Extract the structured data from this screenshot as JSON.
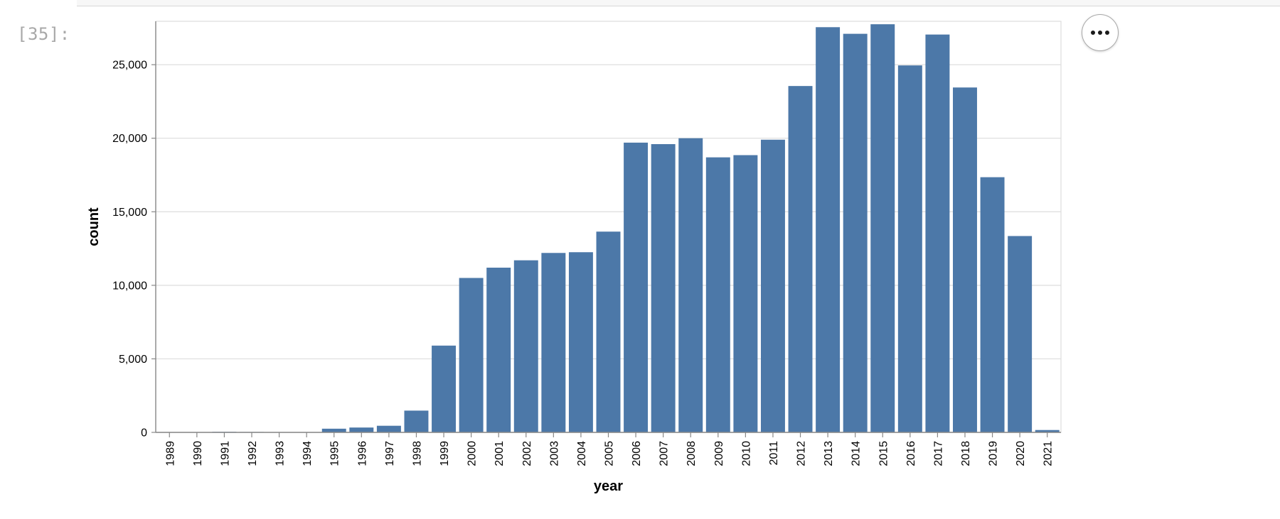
{
  "cell": {
    "prompt": "[35]:"
  },
  "actions_button": {
    "icon": "more-horizontal-icon"
  },
  "colors": {
    "bar": "#4c78a8",
    "grid": "#dddddd",
    "axis": "#888888"
  },
  "chart_data": {
    "type": "bar",
    "xlabel": "year",
    "ylabel": "count",
    "categories": [
      "1989",
      "1990",
      "1991",
      "1992",
      "1993",
      "1994",
      "1995",
      "1996",
      "1997",
      "1998",
      "1999",
      "2000",
      "2001",
      "2002",
      "2003",
      "2004",
      "2005",
      "2006",
      "2007",
      "2008",
      "2009",
      "2010",
      "2011",
      "2012",
      "2013",
      "2014",
      "2015",
      "2016",
      "2017",
      "2018",
      "2019",
      "2020",
      "2021"
    ],
    "values": [
      10,
      20,
      40,
      30,
      15,
      20,
      250,
      330,
      450,
      1480,
      5900,
      10500,
      11200,
      11700,
      12200,
      12250,
      13650,
      19700,
      19600,
      20000,
      18700,
      18850,
      19900,
      23550,
      27550,
      27100,
      27750,
      24950,
      27050,
      23450,
      17350,
      13350,
      160
    ],
    "ylim": [
      0,
      27950
    ],
    "yticks": [
      0,
      5000,
      10000,
      15000,
      20000,
      25000
    ],
    "ytick_labels": [
      "0",
      "5,000",
      "10,000",
      "15,000",
      "20,000",
      "25,000"
    ],
    "grid": true
  }
}
